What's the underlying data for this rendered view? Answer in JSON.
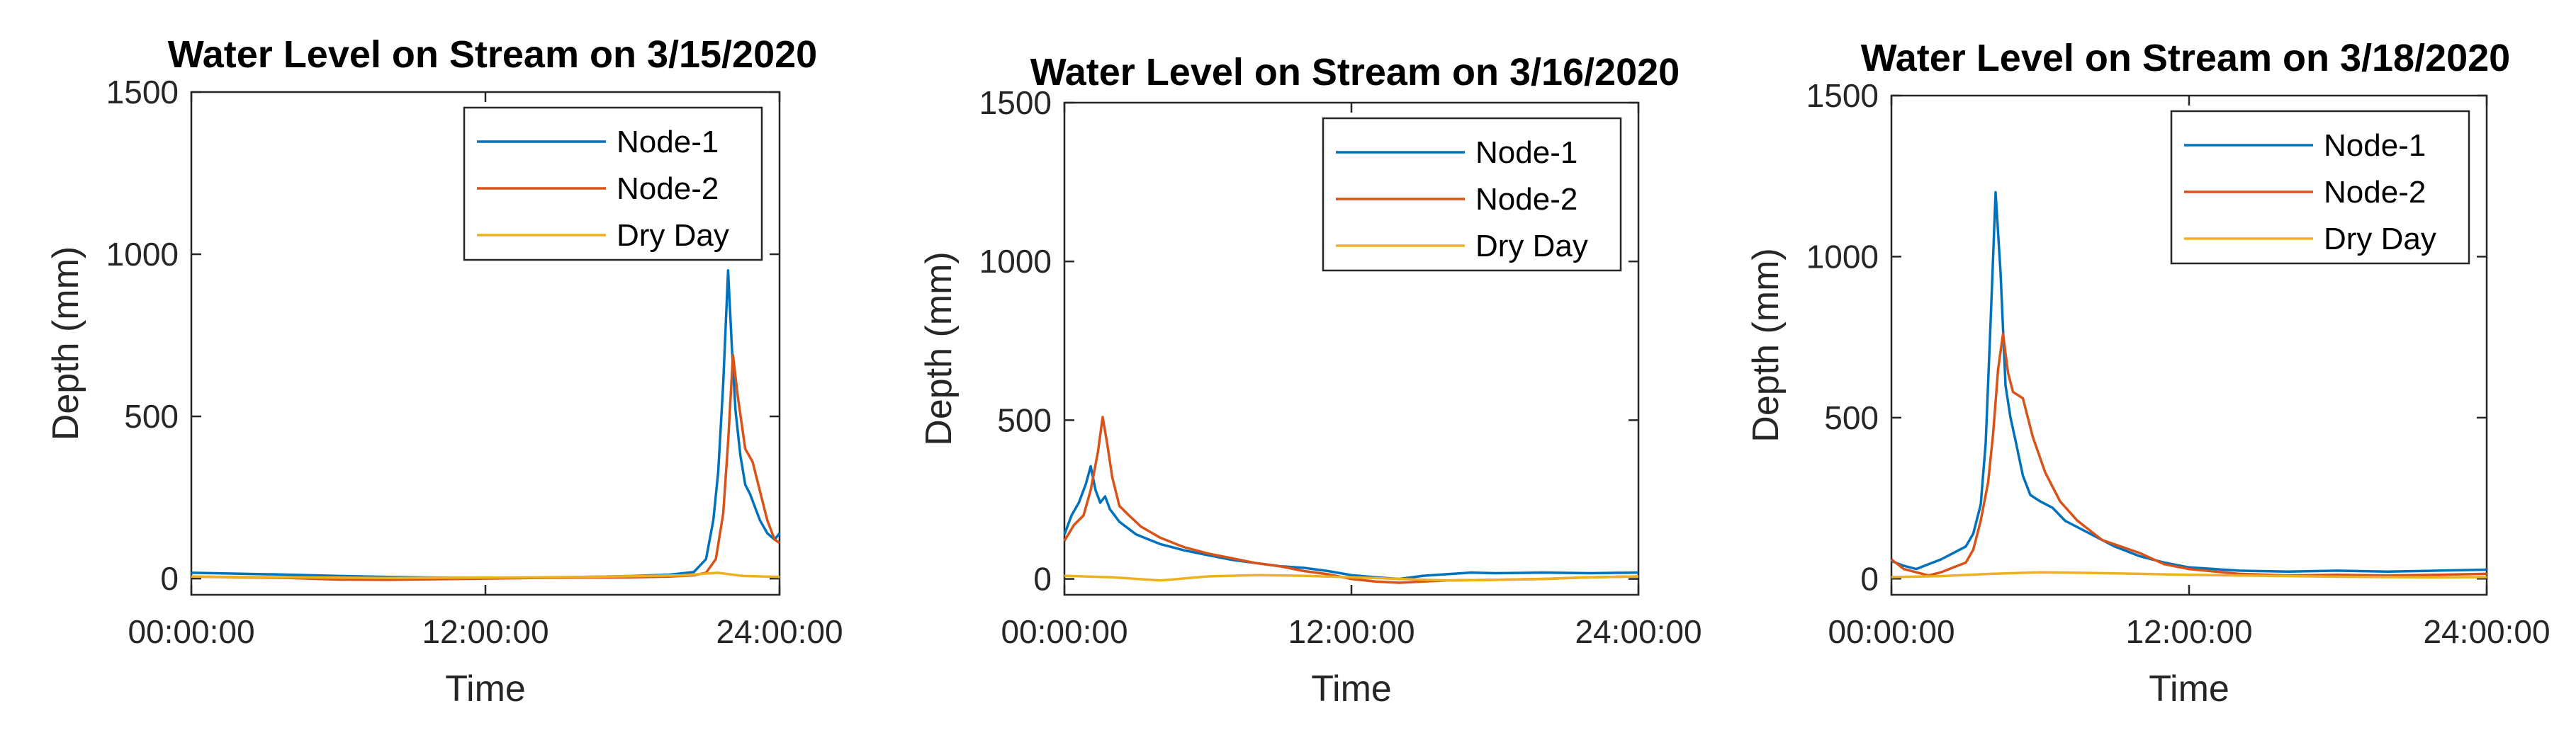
{
  "figure": {
    "legend_location": "top-right",
    "colors": {
      "node1": "#0072BD",
      "node2": "#D95319",
      "dry": "#EDB120"
    }
  },
  "chart_data": [
    {
      "type": "line",
      "title": "Water Level on Stream on 3/15/2020",
      "xlabel": "Time",
      "ylabel": "Depth (mm)",
      "xlim": [
        0,
        24
      ],
      "ylim": [
        -50,
        1500
      ],
      "x_ticks": [
        "00:00:00",
        "12:00:00",
        "24:00:00"
      ],
      "y_ticks": [
        "0",
        "500",
        "1000",
        "1500"
      ],
      "x_unit": "hours",
      "series": [
        {
          "name": "Node-1",
          "color": "#0072BD",
          "points": [
            [
              0,
              18
            ],
            [
              2,
              15
            ],
            [
              4,
              12
            ],
            [
              6,
              8
            ],
            [
              8,
              5
            ],
            [
              10,
              3
            ],
            [
              12,
              2
            ],
            [
              14,
              3
            ],
            [
              16,
              5
            ],
            [
              18,
              8
            ],
            [
              19.5,
              12
            ],
            [
              20.5,
              20
            ],
            [
              21,
              60
            ],
            [
              21.3,
              180
            ],
            [
              21.5,
              330
            ],
            [
              21.7,
              600
            ],
            [
              21.9,
              950
            ],
            [
              22.05,
              720
            ],
            [
              22.2,
              520
            ],
            [
              22.4,
              380
            ],
            [
              22.6,
              290
            ],
            [
              22.8,
              260
            ],
            [
              23,
              220
            ],
            [
              23.2,
              180
            ],
            [
              23.5,
              140
            ],
            [
              23.8,
              120
            ],
            [
              24,
              140
            ]
          ]
        },
        {
          "name": "Node-2",
          "color": "#D95319",
          "points": [
            [
              0,
              6
            ],
            [
              2,
              4
            ],
            [
              4,
              2
            ],
            [
              6,
              -3
            ],
            [
              8,
              -4
            ],
            [
              10,
              -2
            ],
            [
              12,
              0
            ],
            [
              14,
              2
            ],
            [
              16,
              3
            ],
            [
              18,
              4
            ],
            [
              19.5,
              6
            ],
            [
              20.5,
              10
            ],
            [
              21,
              18
            ],
            [
              21.4,
              60
            ],
            [
              21.7,
              200
            ],
            [
              21.9,
              420
            ],
            [
              22.1,
              690
            ],
            [
              22.3,
              560
            ],
            [
              22.6,
              400
            ],
            [
              22.9,
              360
            ],
            [
              23.2,
              270
            ],
            [
              23.5,
              180
            ],
            [
              23.8,
              120
            ],
            [
              24,
              110
            ]
          ]
        },
        {
          "name": "Dry Day",
          "color": "#EDB120",
          "points": [
            [
              0,
              6
            ],
            [
              4,
              4
            ],
            [
              8,
              2
            ],
            [
              12,
              3
            ],
            [
              16,
              5
            ],
            [
              20,
              10
            ],
            [
              21.5,
              18
            ],
            [
              22.5,
              8
            ],
            [
              24,
              5
            ]
          ]
        }
      ]
    },
    {
      "type": "line",
      "title": "Water Level on Stream on 3/16/2020",
      "xlabel": "Time",
      "ylabel": "Depth (mm)",
      "xlim": [
        0,
        24
      ],
      "ylim": [
        -50,
        1500
      ],
      "x_ticks": [
        "00:00:00",
        "12:00:00",
        "24:00:00"
      ],
      "y_ticks": [
        "0",
        "500",
        "1000",
        "1500"
      ],
      "x_unit": "hours",
      "series": [
        {
          "name": "Node-1",
          "color": "#0072BD",
          "points": [
            [
              0,
              140
            ],
            [
              0.3,
              200
            ],
            [
              0.6,
              240
            ],
            [
              0.9,
              300
            ],
            [
              1.1,
              355
            ],
            [
              1.3,
              280
            ],
            [
              1.5,
              240
            ],
            [
              1.7,
              260
            ],
            [
              1.9,
              220
            ],
            [
              2.3,
              180
            ],
            [
              3,
              140
            ],
            [
              4,
              110
            ],
            [
              5,
              90
            ],
            [
              6,
              75
            ],
            [
              7,
              60
            ],
            [
              8,
              50
            ],
            [
              9,
              40
            ],
            [
              10,
              35
            ],
            [
              11,
              25
            ],
            [
              12,
              12
            ],
            [
              13,
              5
            ],
            [
              14,
              0
            ],
            [
              15,
              10
            ],
            [
              16,
              15
            ],
            [
              17,
              20
            ],
            [
              18,
              18
            ],
            [
              20,
              20
            ],
            [
              22,
              18
            ],
            [
              24,
              20
            ]
          ]
        },
        {
          "name": "Node-2",
          "color": "#D95319",
          "points": [
            [
              0,
              120
            ],
            [
              0.4,
              170
            ],
            [
              0.8,
              200
            ],
            [
              1.1,
              280
            ],
            [
              1.4,
              400
            ],
            [
              1.6,
              510
            ],
            [
              1.8,
              420
            ],
            [
              2,
              320
            ],
            [
              2.3,
              230
            ],
            [
              2.7,
              200
            ],
            [
              3.2,
              165
            ],
            [
              4,
              130
            ],
            [
              5,
              100
            ],
            [
              6,
              80
            ],
            [
              7,
              65
            ],
            [
              8,
              50
            ],
            [
              9,
              40
            ],
            [
              10,
              25
            ],
            [
              11,
              15
            ],
            [
              12,
              0
            ],
            [
              13,
              -8
            ],
            [
              14,
              -12
            ],
            [
              15,
              -8
            ],
            [
              16,
              -5
            ],
            [
              18,
              -3
            ],
            [
              20,
              0
            ],
            [
              22,
              5
            ],
            [
              24,
              8
            ]
          ]
        },
        {
          "name": "Dry Day",
          "color": "#EDB120",
          "points": [
            [
              0,
              10
            ],
            [
              2,
              5
            ],
            [
              4,
              -5
            ],
            [
              6,
              8
            ],
            [
              8,
              12
            ],
            [
              10,
              10
            ],
            [
              12,
              5
            ],
            [
              14,
              0
            ],
            [
              16,
              -5
            ],
            [
              18,
              -3
            ],
            [
              20,
              0
            ],
            [
              22,
              5
            ],
            [
              24,
              8
            ]
          ]
        }
      ]
    },
    {
      "type": "line",
      "title": "Water Level on Stream on 3/18/2020",
      "xlabel": "Time",
      "ylabel": "Depth (mm)",
      "xlim": [
        0,
        24
      ],
      "ylim": [
        -50,
        1500
      ],
      "x_ticks": [
        "00:00:00",
        "12:00:00",
        "24:00:00"
      ],
      "y_ticks": [
        "0",
        "500",
        "1000",
        "1500"
      ],
      "x_unit": "hours",
      "series": [
        {
          "name": "Node-1",
          "color": "#0072BD",
          "points": [
            [
              0,
              55
            ],
            [
              0.5,
              40
            ],
            [
              1,
              30
            ],
            [
              1.5,
              45
            ],
            [
              2,
              60
            ],
            [
              2.5,
              80
            ],
            [
              3,
              100
            ],
            [
              3.3,
              140
            ],
            [
              3.6,
              230
            ],
            [
              3.8,
              420
            ],
            [
              4,
              800
            ],
            [
              4.2,
              1200
            ],
            [
              4.4,
              950
            ],
            [
              4.6,
              600
            ],
            [
              4.8,
              500
            ],
            [
              5,
              430
            ],
            [
              5.3,
              320
            ],
            [
              5.6,
              260
            ],
            [
              6,
              240
            ],
            [
              6.5,
              220
            ],
            [
              7,
              180
            ],
            [
              8,
              140
            ],
            [
              9,
              100
            ],
            [
              10,
              70
            ],
            [
              11,
              50
            ],
            [
              12,
              35
            ],
            [
              14,
              25
            ],
            [
              16,
              22
            ],
            [
              18,
              25
            ],
            [
              20,
              22
            ],
            [
              22,
              25
            ],
            [
              24,
              28
            ]
          ]
        },
        {
          "name": "Node-2",
          "color": "#D95319",
          "points": [
            [
              0,
              60
            ],
            [
              0.5,
              30
            ],
            [
              1,
              20
            ],
            [
              1.5,
              10
            ],
            [
              2,
              20
            ],
            [
              2.5,
              35
            ],
            [
              3,
              50
            ],
            [
              3.3,
              90
            ],
            [
              3.6,
              180
            ],
            [
              3.9,
              300
            ],
            [
              4.1,
              450
            ],
            [
              4.3,
              650
            ],
            [
              4.5,
              760
            ],
            [
              4.7,
              640
            ],
            [
              4.9,
              580
            ],
            [
              5.3,
              560
            ],
            [
              5.7,
              440
            ],
            [
              6.2,
              330
            ],
            [
              6.8,
              240
            ],
            [
              7.5,
              180
            ],
            [
              8.5,
              120
            ],
            [
              10,
              80
            ],
            [
              11,
              45
            ],
            [
              12,
              30
            ],
            [
              14,
              15
            ],
            [
              16,
              10
            ],
            [
              18,
              12
            ],
            [
              20,
              10
            ],
            [
              22,
              12
            ],
            [
              24,
              15
            ]
          ]
        },
        {
          "name": "Dry Day",
          "color": "#EDB120",
          "points": [
            [
              0,
              5
            ],
            [
              2,
              8
            ],
            [
              4,
              15
            ],
            [
              6,
              20
            ],
            [
              8,
              18
            ],
            [
              10,
              15
            ],
            [
              12,
              12
            ],
            [
              14,
              10
            ],
            [
              16,
              8
            ],
            [
              18,
              6
            ],
            [
              20,
              5
            ],
            [
              22,
              4
            ],
            [
              24,
              5
            ]
          ]
        }
      ]
    }
  ]
}
